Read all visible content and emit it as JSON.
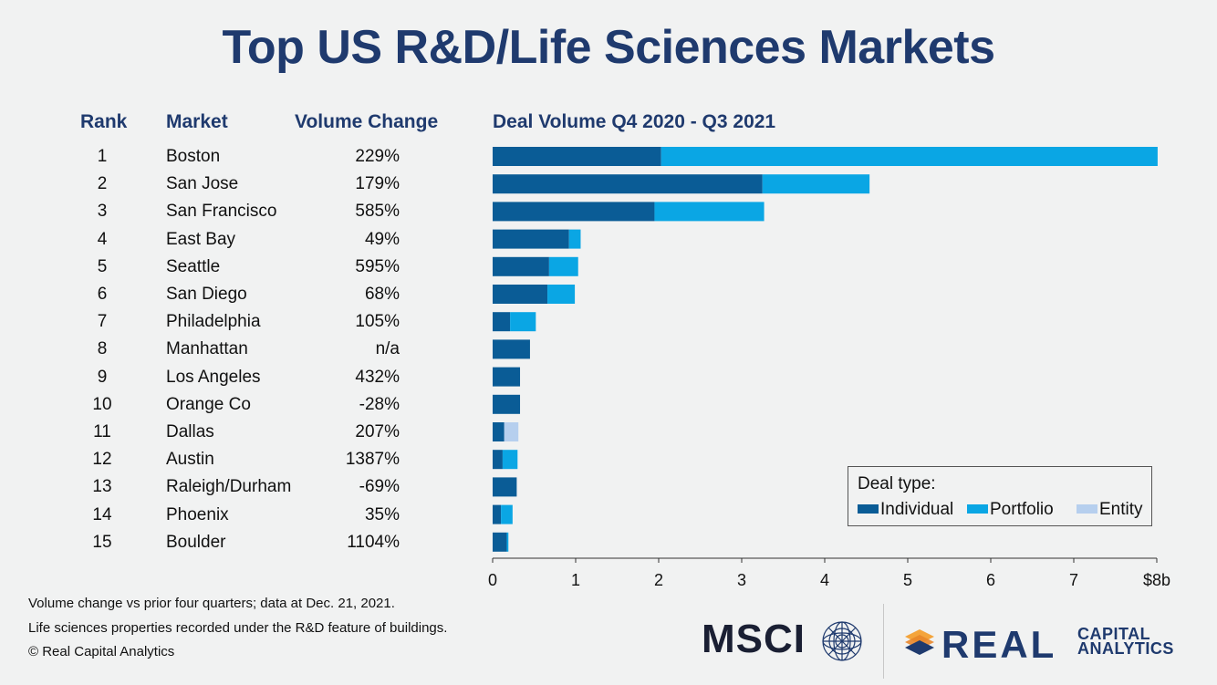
{
  "title": "Top US R&D/Life Sciences Markets",
  "headers": {
    "rank": "Rank",
    "market": "Market",
    "change": "Volume Change",
    "chart": "Deal Volume Q4 2020 - Q3 2021"
  },
  "rows": [
    {
      "rank": "1",
      "market": "Boston",
      "change": "229%"
    },
    {
      "rank": "2",
      "market": "San Jose",
      "change": "179%"
    },
    {
      "rank": "3",
      "market": "San Francisco",
      "change": "585%"
    },
    {
      "rank": "4",
      "market": "East Bay",
      "change": "49%"
    },
    {
      "rank": "5",
      "market": "Seattle",
      "change": "595%"
    },
    {
      "rank": "6",
      "market": "San Diego",
      "change": "68%"
    },
    {
      "rank": "7",
      "market": "Philadelphia",
      "change": "105%"
    },
    {
      "rank": "8",
      "market": "Manhattan",
      "change": "n/a"
    },
    {
      "rank": "9",
      "market": "Los Angeles",
      "change": "432%"
    },
    {
      "rank": "10",
      "market": "Orange Co",
      "change": "-28%"
    },
    {
      "rank": "11",
      "market": "Dallas",
      "change": "207%"
    },
    {
      "rank": "12",
      "market": "Austin",
      "change": "1387%"
    },
    {
      "rank": "13",
      "market": "Raleigh/Durham",
      "change": "-69%"
    },
    {
      "rank": "14",
      "market": "Phoenix",
      "change": "35%"
    },
    {
      "rank": "15",
      "market": "Boulder",
      "change": "1104%"
    }
  ],
  "chart_data": {
    "type": "bar",
    "orientation": "horizontal",
    "stacked": true,
    "title": "Deal Volume Q4 2020 - Q3 2021",
    "categories": [
      "Boston",
      "San Jose",
      "San Francisco",
      "East Bay",
      "Seattle",
      "San Diego",
      "Philadelphia",
      "Manhattan",
      "Los Angeles",
      "Orange Co",
      "Dallas",
      "Austin",
      "Raleigh/Durham",
      "Phoenix",
      "Boulder"
    ],
    "series": [
      {
        "name": "Individual",
        "color": "#0a5c96",
        "values": [
          2.03,
          3.25,
          1.95,
          0.92,
          0.68,
          0.66,
          0.21,
          0.45,
          0.33,
          0.33,
          0.14,
          0.12,
          0.29,
          0.1,
          0.17
        ]
      },
      {
        "name": "Portfolio",
        "color": "#0aa6e4",
        "values": [
          5.98,
          1.29,
          1.32,
          0.14,
          0.35,
          0.33,
          0.31,
          0.0,
          0.0,
          0.0,
          0.0,
          0.18,
          0.0,
          0.14,
          0.02
        ]
      },
      {
        "name": "Entity",
        "color": "#b6cfee",
        "values": [
          0,
          0,
          0,
          0,
          0,
          0,
          0,
          0,
          0,
          0,
          0.17,
          0,
          0,
          0,
          0
        ]
      }
    ],
    "xlim": [
      0,
      8
    ],
    "xticks": [
      "0",
      "1",
      "2",
      "3",
      "4",
      "5",
      "6",
      "7",
      "$8b"
    ],
    "legend": {
      "title": "Deal type:",
      "placement": "bottom-right"
    }
  },
  "legend": {
    "title": "Deal type:",
    "items": [
      "Individual",
      "Portfolio",
      "Entity"
    ]
  },
  "footnotes": [
    "Volume change vs prior four quarters; data at Dec. 21, 2021.",
    "Life sciences properties recorded under the R&D feature of buildings.",
    "© Real Capital Analytics"
  ],
  "logos": {
    "msci": "MSCI",
    "rca_main": "REAL",
    "rca_line1": "CAPITAL",
    "rca_line2": "ANALYTICS"
  }
}
